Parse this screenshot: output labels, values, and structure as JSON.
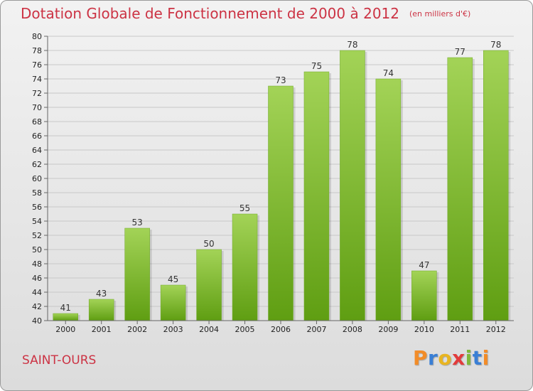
{
  "title": "Dotation Globale de Fonctionnement de 2000 à 2012",
  "subtitle": "(en milliers d'€)",
  "commune": "SAINT-OURS",
  "brand": {
    "letters": [
      "P",
      "r",
      "o",
      "x",
      "i",
      "t",
      "i"
    ],
    "colors": [
      "#f28c28",
      "#3a7fd5",
      "#e8b521",
      "#e23b3b",
      "#7fb83a",
      "#3a7fd5",
      "#f28c28"
    ]
  },
  "chart_data": {
    "type": "bar",
    "categories": [
      "2000",
      "2001",
      "2002",
      "2003",
      "2004",
      "2005",
      "2006",
      "2007",
      "2008",
      "2009",
      "2010",
      "2011",
      "2012"
    ],
    "values": [
      41,
      43,
      53,
      45,
      50,
      55,
      73,
      75,
      78,
      74,
      47,
      77,
      78
    ],
    "ylim": [
      40,
      80
    ],
    "yticks": [
      40,
      42,
      44,
      46,
      48,
      50,
      52,
      54,
      56,
      58,
      60,
      62,
      64,
      66,
      68,
      70,
      72,
      74,
      76,
      78,
      80
    ],
    "grid": true,
    "bar_color": "#8cc63f"
  }
}
